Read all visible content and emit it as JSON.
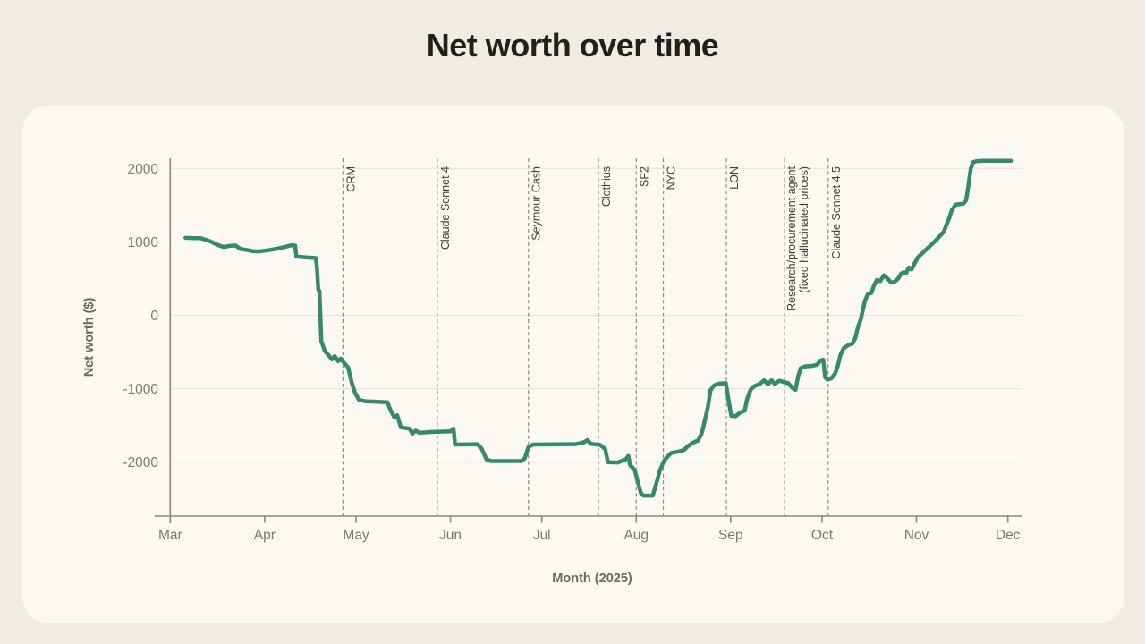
{
  "page": {
    "background_color": "#efece3",
    "card_color": "#fbf9f2"
  },
  "chart_data": {
    "type": "line",
    "title": "Net worth over time",
    "xlabel": "Month (2025)",
    "ylabel": "Net worth ($)",
    "x_unit": "days since Mar 1 2025",
    "x_ticks": [
      {
        "label": "Mar",
        "day": 0
      },
      {
        "label": "Apr",
        "day": 31
      },
      {
        "label": "May",
        "day": 61
      },
      {
        "label": "Jun",
        "day": 92
      },
      {
        "label": "Jul",
        "day": 122
      },
      {
        "label": "Aug",
        "day": 153
      },
      {
        "label": "Sep",
        "day": 184
      },
      {
        "label": "Oct",
        "day": 214
      },
      {
        "label": "Nov",
        "day": 245
      },
      {
        "label": "Dec",
        "day": 275
      }
    ],
    "y_ticks": [
      2000,
      1000,
      0,
      -1000,
      -2000
    ],
    "ylim": [
      -2700,
      2300
    ],
    "xlim_days": [
      -5,
      281
    ],
    "grid": "horizontal",
    "legend": "none",
    "annotations": [
      {
        "label": "CRM",
        "day": 56.7
      },
      {
        "label": "Claude Sonnet 4",
        "day": 87.7
      },
      {
        "label": "Seymour Cash",
        "day": 117.6
      },
      {
        "label": "Clothius",
        "day": 140.6
      },
      {
        "label": "SF2",
        "day": 153.0
      },
      {
        "label": "NYC",
        "day": 161.9
      },
      {
        "label": "LON",
        "day": 182.6
      },
      {
        "label": "Research/procurement agent",
        "label2": "(fixed hallucinated prices)",
        "day": 201.7
      },
      {
        "label": "Claude Sonnet 4.5",
        "day": 216.0
      }
    ],
    "series": [
      {
        "name": "Net worth",
        "color": "#358a6b",
        "points": [
          [
            5,
            1055
          ],
          [
            8,
            1050
          ],
          [
            10,
            1050
          ],
          [
            11.5,
            1030
          ],
          [
            13.5,
            1000
          ],
          [
            15.5,
            960
          ],
          [
            17.5,
            930
          ],
          [
            19.5,
            945
          ],
          [
            21.5,
            950
          ],
          [
            23,
            905
          ],
          [
            25,
            890
          ],
          [
            27,
            875
          ],
          [
            29,
            870
          ],
          [
            32,
            885
          ],
          [
            34,
            900
          ],
          [
            36,
            915
          ],
          [
            38,
            935
          ],
          [
            40,
            955
          ],
          [
            41,
            950
          ],
          [
            41.4,
            800
          ],
          [
            44,
            790
          ],
          [
            47.8,
            780
          ],
          [
            48.2,
            640
          ],
          [
            48.6,
            350
          ],
          [
            49,
            330
          ],
          [
            49.6,
            -350
          ],
          [
            50.7,
            -480
          ],
          [
            51.9,
            -540
          ],
          [
            53.1,
            -600
          ],
          [
            54,
            -555
          ],
          [
            55.1,
            -625
          ],
          [
            56,
            -590
          ],
          [
            57.2,
            -655
          ],
          [
            58.4,
            -710
          ],
          [
            59.5,
            -905
          ],
          [
            60.7,
            -1060
          ],
          [
            61.9,
            -1150
          ],
          [
            63.9,
            -1170
          ],
          [
            71.3,
            -1185
          ],
          [
            72.4,
            -1300
          ],
          [
            73.6,
            -1390
          ],
          [
            74.5,
            -1360
          ],
          [
            75.7,
            -1525
          ],
          [
            78.6,
            -1545
          ],
          [
            79.5,
            -1610
          ],
          [
            80.6,
            -1570
          ],
          [
            81.8,
            -1600
          ],
          [
            85.3,
            -1590
          ],
          [
            92.1,
            -1580
          ],
          [
            93,
            -1545
          ],
          [
            93.5,
            -1760
          ],
          [
            100.9,
            -1755
          ],
          [
            102.3,
            -1820
          ],
          [
            103.8,
            -1960
          ],
          [
            105.3,
            -1985
          ],
          [
            115.2,
            -1985
          ],
          [
            116.4,
            -1950
          ],
          [
            117.6,
            -1795
          ],
          [
            119.1,
            -1760
          ],
          [
            133.1,
            -1755
          ],
          [
            135.8,
            -1730
          ],
          [
            137,
            -1700
          ],
          [
            138.1,
            -1750
          ],
          [
            141.1,
            -1765
          ],
          [
            142.8,
            -1820
          ],
          [
            143.7,
            -2000
          ],
          [
            146.9,
            -2005
          ],
          [
            149.6,
            -1960
          ],
          [
            150.4,
            -1915
          ],
          [
            151,
            -2040
          ],
          [
            152.5,
            -2110
          ],
          [
            153.4,
            -2250
          ],
          [
            154.5,
            -2420
          ],
          [
            155.4,
            -2455
          ],
          [
            158.4,
            -2455
          ],
          [
            159.5,
            -2305
          ],
          [
            160.7,
            -2120
          ],
          [
            161.9,
            -2000
          ],
          [
            163,
            -1935
          ],
          [
            164.5,
            -1875
          ],
          [
            166.9,
            -1855
          ],
          [
            168.6,
            -1835
          ],
          [
            170.1,
            -1780
          ],
          [
            171.6,
            -1735
          ],
          [
            173.3,
            -1705
          ],
          [
            174.5,
            -1605
          ],
          [
            175.1,
            -1510
          ],
          [
            175.7,
            -1395
          ],
          [
            176.5,
            -1255
          ],
          [
            177.4,
            -1020
          ],
          [
            178.6,
            -955
          ],
          [
            180.1,
            -930
          ],
          [
            182.4,
            -925
          ],
          [
            183.3,
            -1150
          ],
          [
            184.2,
            -1370
          ],
          [
            185.6,
            -1375
          ],
          [
            187.1,
            -1325
          ],
          [
            188.6,
            -1300
          ],
          [
            189.4,
            -1140
          ],
          [
            190.6,
            -1010
          ],
          [
            191.8,
            -965
          ],
          [
            193.5,
            -935
          ],
          [
            195,
            -885
          ],
          [
            196.2,
            -940
          ],
          [
            197.4,
            -885
          ],
          [
            198.5,
            -935
          ],
          [
            200,
            -890
          ],
          [
            201.5,
            -910
          ],
          [
            202.9,
            -925
          ],
          [
            204.4,
            -995
          ],
          [
            205.3,
            -1015
          ],
          [
            206.2,
            -825
          ],
          [
            207,
            -720
          ],
          [
            208.5,
            -695
          ],
          [
            210.6,
            -690
          ],
          [
            212.3,
            -675
          ],
          [
            213.5,
            -615
          ],
          [
            214.4,
            -605
          ],
          [
            215,
            -845
          ],
          [
            215.8,
            -875
          ],
          [
            217,
            -860
          ],
          [
            218.2,
            -800
          ],
          [
            219.1,
            -700
          ],
          [
            220,
            -545
          ],
          [
            221.1,
            -450
          ],
          [
            222.6,
            -405
          ],
          [
            224,
            -385
          ],
          [
            224.9,
            -310
          ],
          [
            225.8,
            -165
          ],
          [
            226.7,
            -60
          ],
          [
            227.3,
            60
          ],
          [
            228.1,
            200
          ],
          [
            229,
            285
          ],
          [
            230.2,
            305
          ],
          [
            231.1,
            410
          ],
          [
            232,
            480
          ],
          [
            233.1,
            465
          ],
          [
            234.3,
            545
          ],
          [
            235.5,
            500
          ],
          [
            236.7,
            445
          ],
          [
            237.8,
            455
          ],
          [
            239,
            500
          ],
          [
            239.9,
            565
          ],
          [
            240.8,
            585
          ],
          [
            241.6,
            575
          ],
          [
            242.5,
            650
          ],
          [
            243.4,
            625
          ],
          [
            244.3,
            700
          ],
          [
            245.5,
            790
          ],
          [
            246.9,
            845
          ],
          [
            248.4,
            905
          ],
          [
            249.9,
            960
          ],
          [
            251.6,
            1030
          ],
          [
            252.8,
            1085
          ],
          [
            254,
            1140
          ],
          [
            254.8,
            1230
          ],
          [
            255.7,
            1320
          ],
          [
            256.6,
            1430
          ],
          [
            257.8,
            1505
          ],
          [
            260.4,
            1520
          ],
          [
            261.3,
            1565
          ],
          [
            261.9,
            1725
          ],
          [
            262.8,
            1990
          ],
          [
            263.6,
            2085
          ],
          [
            264.8,
            2100
          ],
          [
            267,
            2105
          ],
          [
            276,
            2105
          ]
        ]
      }
    ],
    "colors": {
      "line": "#358a6b",
      "axis": "#8b887d",
      "grid": "#e9e6db",
      "tick_text": "#7b786e",
      "axis_label_text": "#6c6960",
      "annotation_line": "#908d83",
      "annotation_text": "#3f3d37",
      "title_text": "#22201b"
    }
  }
}
